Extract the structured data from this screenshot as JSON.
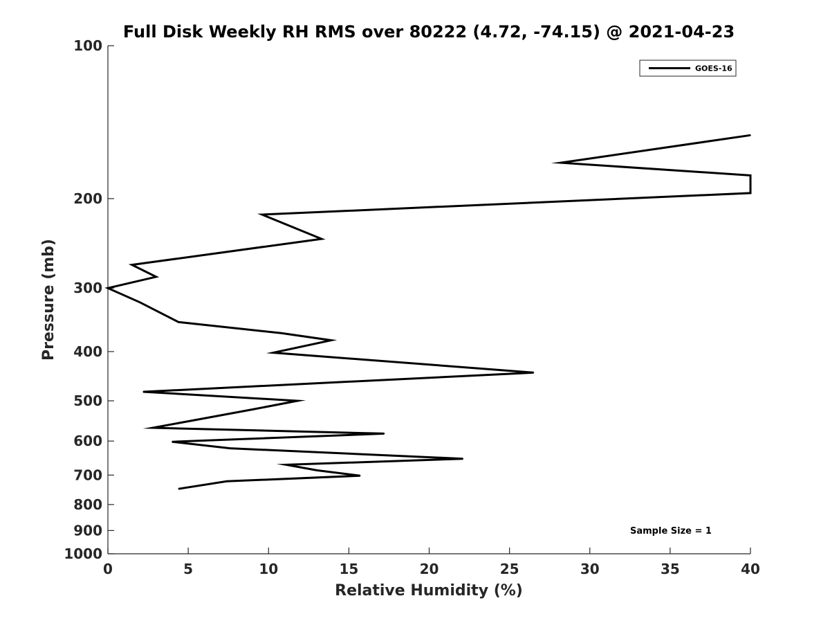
{
  "chart_data": {
    "type": "line",
    "title": "Full Disk Weekly RH RMS over 80222 (4.72, -74.15) @ 2021-04-23",
    "xlabel": "Relative Humidity (%)",
    "ylabel": "Pressure (mb)",
    "xlim": [
      0,
      40
    ],
    "ylim": [
      100,
      1000
    ],
    "yscale": "log",
    "yreversed": true,
    "grid": false,
    "xticks": [
      0,
      5,
      10,
      15,
      20,
      25,
      30,
      35,
      40
    ],
    "xtick_labels": [
      "0",
      "5",
      "10",
      "15",
      "20",
      "25",
      "30",
      "35",
      "40"
    ],
    "yticks": [
      100,
      200,
      300,
      400,
      500,
      600,
      700,
      800,
      900,
      1000
    ],
    "ytick_labels": [
      "100",
      "200",
      "300",
      "400",
      "500",
      "600",
      "700",
      "800",
      "900",
      "1000"
    ],
    "legend_position": "top-right",
    "series": [
      {
        "name": "GOES-16",
        "color": "#000000",
        "points": [
          {
            "x": 40,
            "y": 150
          },
          {
            "x": 28.2,
            "y": 170
          },
          {
            "x": 40,
            "y": 180
          },
          {
            "x": 40,
            "y": 195
          },
          {
            "x": 9.6,
            "y": 215
          },
          {
            "x": 13.3,
            "y": 240
          },
          {
            "x": 1.5,
            "y": 270
          },
          {
            "x": 3.0,
            "y": 285
          },
          {
            "x": 0,
            "y": 300
          },
          {
            "x": 2.0,
            "y": 320
          },
          {
            "x": 4.4,
            "y": 350
          },
          {
            "x": 10.8,
            "y": 368
          },
          {
            "x": 13.9,
            "y": 380
          },
          {
            "x": 10.3,
            "y": 402
          },
          {
            "x": 26.5,
            "y": 440
          },
          {
            "x": 2.2,
            "y": 480
          },
          {
            "x": 11.8,
            "y": 500
          },
          {
            "x": 9.0,
            "y": 520
          },
          {
            "x": 5.5,
            "y": 545
          },
          {
            "x": 2.8,
            "y": 565
          },
          {
            "x": 17.2,
            "y": 580
          },
          {
            "x": 4.0,
            "y": 602
          },
          {
            "x": 7.6,
            "y": 620
          },
          {
            "x": 22.1,
            "y": 650
          },
          {
            "x": 11.1,
            "y": 668
          },
          {
            "x": 13.0,
            "y": 685
          },
          {
            "x": 15.7,
            "y": 702
          },
          {
            "x": 7.4,
            "y": 720
          },
          {
            "x": 4.4,
            "y": 745
          }
        ]
      }
    ],
    "annotations": [
      "Sample Size = 1"
    ]
  }
}
